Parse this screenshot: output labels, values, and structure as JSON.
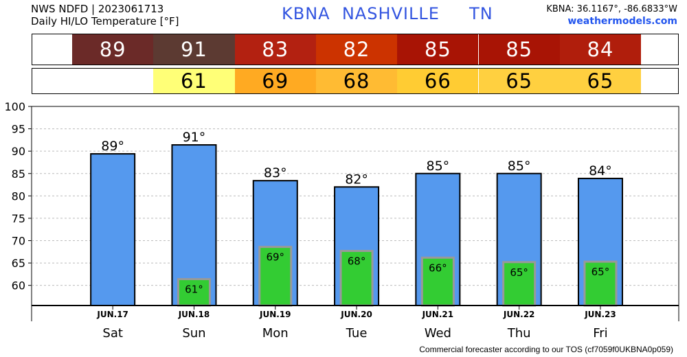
{
  "header": {
    "title_line1": "NWS NDFD | 2023061713",
    "title_line2": "Daily HI/LO Temperature [°F]",
    "station": "KBNA  NASHVILLE     TN",
    "coords": "KBNA: 36.1167°, -86.6833°W",
    "site": "weathermodels.com"
  },
  "footer": "Commercial forecaster according to our TOS (cf7059f0UKBNA0p059)",
  "colors": {
    "bar_high": "#5599ee",
    "bar_low": "#33cc33",
    "low_bar_border": "#999999",
    "strip_hi": [
      "#6b2a28",
      "#5c3a32",
      "#b32111",
      "#cc3300",
      "#a81405",
      "#a81405",
      "#b01e0c"
    ],
    "strip_lo": [
      "#ffff77",
      "#ffaa22",
      "#ffbb33",
      "#ffcc33",
      "#ffd040",
      "#ffd040"
    ],
    "strip_hi_text": "#ffffff",
    "strip_lo_text": "#000000"
  },
  "chart_data": {
    "type": "bar",
    "categories": [
      "Sat",
      "Sun",
      "Mon",
      "Tue",
      "Wed",
      "Thu",
      "Fri"
    ],
    "dates": [
      "JUN.17",
      "JUN.18",
      "JUN.19",
      "JUN.20",
      "JUN.21",
      "JUN.22",
      "JUN.23"
    ],
    "series": [
      {
        "values": [
          89.4,
          91.4,
          83.4,
          82,
          85,
          85,
          83.9
        ],
        "labels": [
          "89°",
          "91°",
          "83°",
          "82°",
          "85°",
          "85°",
          "84°"
        ]
      },
      {
        "values": [
          null,
          61.4,
          68.6,
          67.7,
          66.2,
          65.2,
          65.3
        ],
        "labels": [
          "",
          "61°",
          "69°",
          "68°",
          "66°",
          "65°",
          "65°"
        ]
      }
    ],
    "strip_high": [
      "89",
      "91",
      "83",
      "82",
      "85",
      "85",
      "84"
    ],
    "strip_low": [
      "",
      "61",
      "69",
      "68",
      "66",
      "65",
      "65"
    ],
    "ylim": [
      55.5,
      100
    ],
    "yticks": [
      60,
      65,
      70,
      75,
      80,
      85,
      90,
      95,
      100
    ],
    "grid": true,
    "legend": "none"
  }
}
